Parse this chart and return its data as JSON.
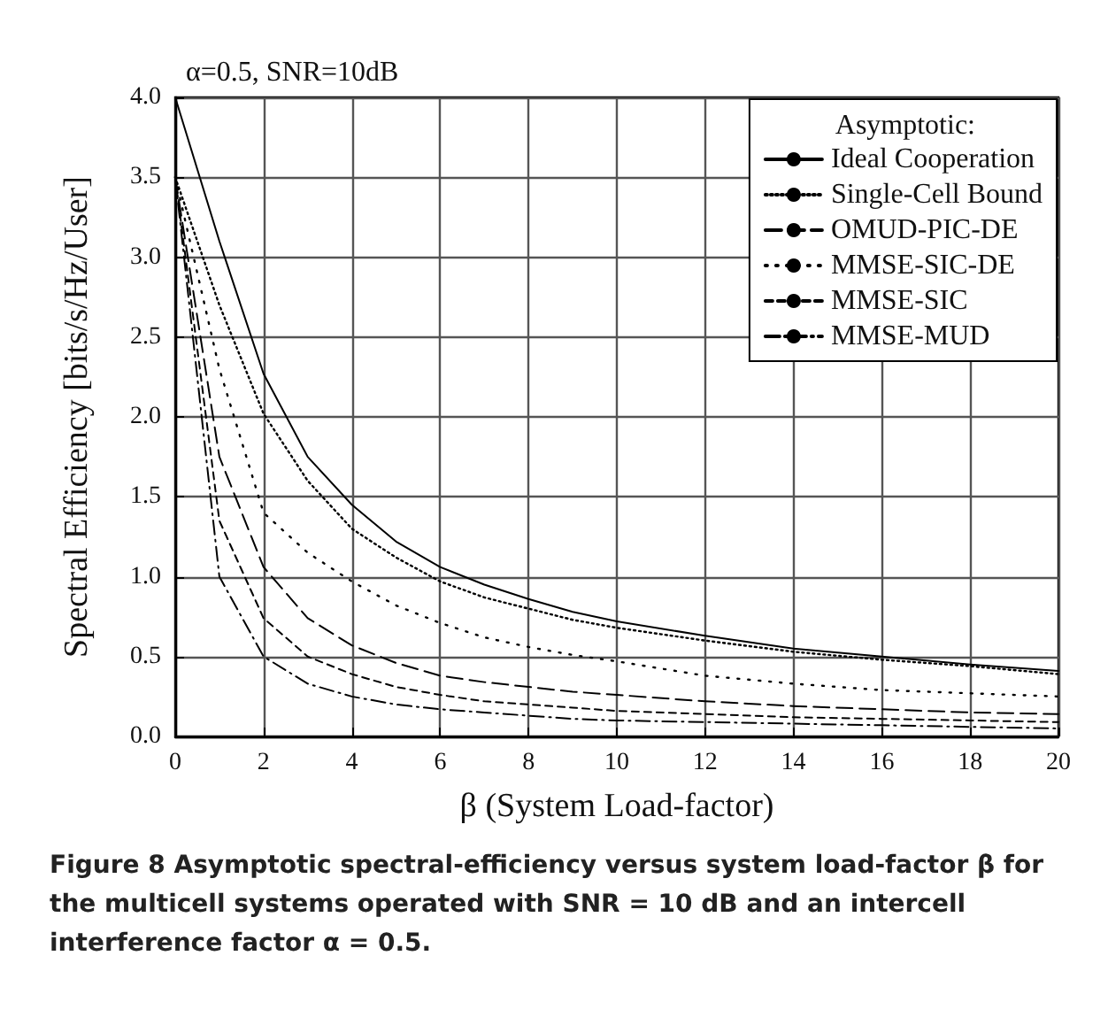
{
  "chart_data": {
    "type": "line",
    "title": "α=0.5, SNR=10dB",
    "xlabel": "β (System Load-factor)",
    "ylabel": "Spectral Efficiency [bits/s/Hz/User]",
    "legend_title": "Asymptotic:",
    "annotations": [
      "Figure 8 Asymptotic spectral-efficiency versus system load-factor β for the multicell systems operated with SNR = 10 dB and an intercell interference factor α = 0.5."
    ],
    "x": [
      0,
      1,
      2,
      3,
      4,
      5,
      6,
      7,
      8,
      9,
      10,
      12,
      14,
      16,
      18,
      20
    ],
    "series": [
      {
        "name": "Ideal Cooperation",
        "color": "#000000",
        "line_style": "solid",
        "values": [
          4.0,
          3.1,
          2.27,
          1.75,
          1.45,
          1.22,
          1.06,
          0.95,
          0.86,
          0.78,
          0.72,
          0.63,
          0.55,
          0.5,
          0.45,
          0.41
        ]
      },
      {
        "name": "Single-Cell Bound",
        "color": "#000000",
        "line_style": "dotted",
        "values": [
          3.5,
          2.7,
          2.02,
          1.6,
          1.3,
          1.12,
          0.97,
          0.87,
          0.8,
          0.73,
          0.68,
          0.6,
          0.53,
          0.48,
          0.44,
          0.39
        ]
      },
      {
        "name": "OMUD-PIC-DE",
        "color": "#000000",
        "line_style": "dashed",
        "values": [
          3.5,
          1.75,
          1.06,
          0.74,
          0.57,
          0.46,
          0.38,
          0.34,
          0.31,
          0.28,
          0.26,
          0.22,
          0.19,
          0.17,
          0.15,
          0.14
        ]
      },
      {
        "name": "MMSE-SIC-DE",
        "color": "#000000",
        "line_style": "dotted",
        "values": [
          3.5,
          2.3,
          1.4,
          1.15,
          0.97,
          0.82,
          0.71,
          0.62,
          0.56,
          0.51,
          0.47,
          0.38,
          0.33,
          0.29,
          0.27,
          0.25
        ]
      },
      {
        "name": "MMSE-SIC",
        "color": "#000000",
        "line_style": "dashed",
        "values": [
          3.5,
          1.35,
          0.74,
          0.5,
          0.39,
          0.31,
          0.26,
          0.22,
          0.2,
          0.18,
          0.16,
          0.14,
          0.12,
          0.11,
          0.1,
          0.09
        ]
      },
      {
        "name": "MMSE-MUD",
        "color": "#000000",
        "line_style": "dashdot",
        "values": [
          3.5,
          1.0,
          0.5,
          0.33,
          0.25,
          0.2,
          0.17,
          0.15,
          0.13,
          0.11,
          0.1,
          0.09,
          0.08,
          0.07,
          0.06,
          0.05
        ]
      }
    ],
    "xlim": [
      0,
      20
    ],
    "xticks": [
      0,
      2,
      4,
      6,
      8,
      10,
      12,
      14,
      16,
      18,
      20
    ],
    "ylim": [
      0,
      4
    ],
    "yticks": [
      {
        "value": 0,
        "label": "0.0"
      },
      {
        "value": 0.5,
        "label": "0.5"
      },
      {
        "value": 1,
        "label": "1.0"
      },
      {
        "value": 1.5,
        "label": "1.5"
      },
      {
        "value": 2,
        "label": "2.0"
      },
      {
        "value": 2.5,
        "label": "2.5"
      },
      {
        "value": 3,
        "label": "3.0"
      },
      {
        "value": 3.5,
        "label": "3.5"
      },
      {
        "value": 4,
        "label": "4.0"
      }
    ],
    "grid": true,
    "legend": "top right",
    "marker": "none"
  }
}
